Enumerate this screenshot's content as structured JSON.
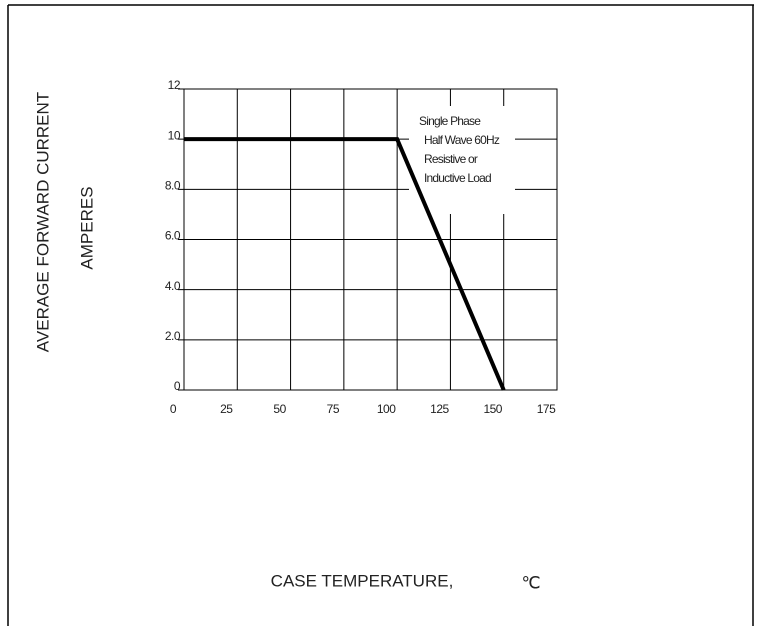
{
  "chart_data": {
    "type": "line",
    "x": [
      0,
      100,
      150
    ],
    "values": [
      10,
      10,
      0
    ],
    "color": "#000000",
    "xlim": [
      0,
      175
    ],
    "xticks": [
      0,
      25,
      50,
      75,
      100,
      125,
      150,
      175
    ],
    "ylim": [
      0,
      12
    ],
    "yticks": [
      0,
      {
        "value": 2,
        "label": "2.0"
      },
      {
        "value": 4,
        "label": "4.0"
      },
      {
        "value": 6,
        "label": "6.0"
      },
      {
        "value": 8,
        "label": "8.0"
      },
      10,
      12
    ],
    "grid": true,
    "y_label": "AVERAGE FORWARD CURRENT",
    "y_label_unit": "AMPERES",
    "x_label": "CASE TEMPERATURE,",
    "x_label_unit": "℃",
    "annotation": [
      "Single Phase",
      "Half Wave 60Hz",
      "Resistive or",
      "Inductive Load"
    ]
  }
}
